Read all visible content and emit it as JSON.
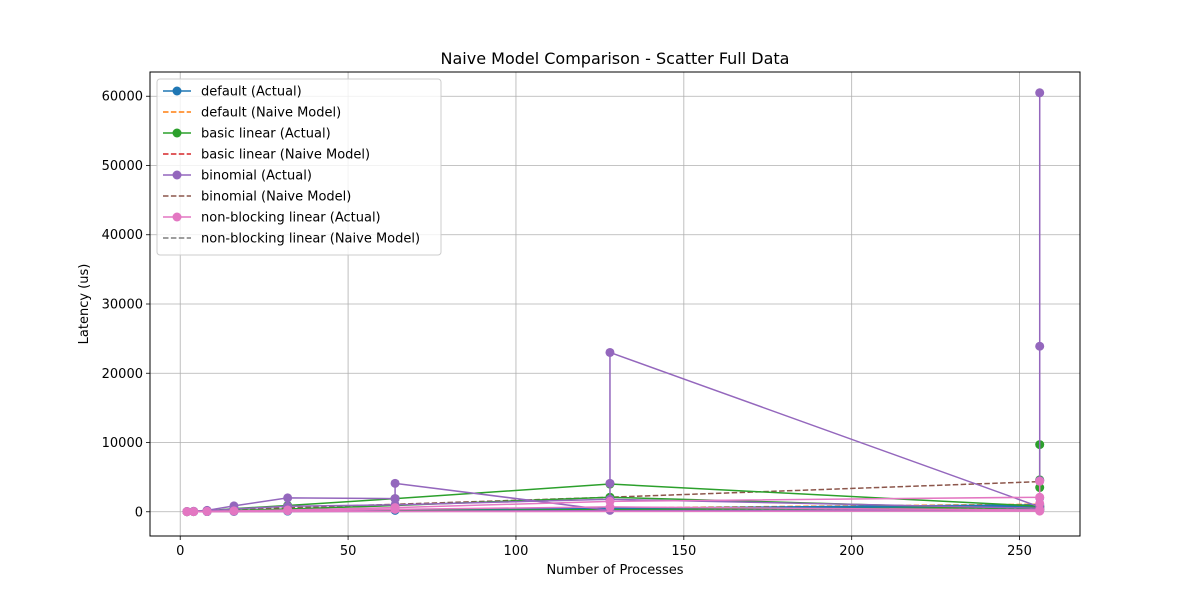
{
  "chart_data": {
    "type": "line",
    "title": "Naive Model Comparison - Scatter Full Data",
    "xlabel": "Number of Processes",
    "ylabel": "Latency (us)",
    "xlim": [
      -9,
      268
    ],
    "ylim": [
      -3500,
      63500
    ],
    "xticks": [
      0,
      50,
      100,
      150,
      200,
      250
    ],
    "yticks": [
      0,
      10000,
      20000,
      30000,
      40000,
      50000,
      60000
    ],
    "grid": true,
    "legend_position": "upper-left",
    "series": [
      {
        "name": "default (Actual)",
        "color": "#1f77b4",
        "style": "solid-marker",
        "points": [
          [
            2,
            20
          ],
          [
            4,
            25
          ],
          [
            8,
            35
          ],
          [
            16,
            60
          ],
          [
            32,
            120
          ],
          [
            64,
            250
          ],
          [
            128,
            500
          ],
          [
            256,
            1000
          ],
          [
            256,
            200
          ],
          [
            2,
            15
          ],
          [
            4,
            20
          ],
          [
            8,
            30
          ],
          [
            16,
            50
          ],
          [
            32,
            100
          ],
          [
            64,
            200
          ],
          [
            128,
            400
          ],
          [
            256,
            800
          ]
        ]
      },
      {
        "name": "default (Naive Model)",
        "color": "#ff7f0e",
        "style": "dashed",
        "points": [
          [
            2,
            10
          ],
          [
            4,
            20
          ],
          [
            8,
            35
          ],
          [
            16,
            70
          ],
          [
            32,
            140
          ],
          [
            64,
            270
          ],
          [
            128,
            540
          ],
          [
            256,
            1080
          ]
        ]
      },
      {
        "name": "basic linear (Actual)",
        "color": "#2ca02c",
        "style": "solid-marker",
        "points": [
          [
            2,
            20
          ],
          [
            4,
            40
          ],
          [
            8,
            120
          ],
          [
            16,
            450
          ],
          [
            32,
            900
          ],
          [
            64,
            1900
          ],
          [
            128,
            4000
          ],
          [
            256,
            800
          ],
          [
            256,
            3500
          ],
          [
            256,
            4600
          ],
          [
            256,
            9700
          ],
          [
            256,
            600
          ],
          [
            2,
            10
          ],
          [
            4,
            30
          ],
          [
            8,
            80
          ],
          [
            16,
            200
          ],
          [
            32,
            400
          ],
          [
            64,
            900
          ],
          [
            128,
            2100
          ],
          [
            256,
            300
          ]
        ]
      },
      {
        "name": "basic linear (Naive Model)",
        "color": "#d62728",
        "style": "dashed",
        "points": [
          [
            2,
            8
          ],
          [
            4,
            15
          ],
          [
            8,
            30
          ],
          [
            16,
            60
          ],
          [
            32,
            120
          ],
          [
            64,
            240
          ],
          [
            128,
            480
          ],
          [
            256,
            960
          ]
        ]
      },
      {
        "name": "binomial (Actual)",
        "color": "#9467bd",
        "style": "solid-marker",
        "points": [
          [
            2,
            30
          ],
          [
            4,
            70
          ],
          [
            8,
            200
          ],
          [
            16,
            850
          ],
          [
            32,
            2000
          ],
          [
            64,
            1900
          ],
          [
            64,
            4100
          ],
          [
            128,
            200
          ],
          [
            128,
            4100
          ],
          [
            128,
            23000
          ],
          [
            256,
            700
          ],
          [
            256,
            2000
          ],
          [
            256,
            23900
          ],
          [
            256,
            60500
          ],
          [
            256,
            4500
          ],
          [
            256,
            300
          ],
          [
            2,
            20
          ],
          [
            4,
            40
          ],
          [
            8,
            100
          ],
          [
            16,
            400
          ],
          [
            32,
            800
          ],
          [
            64,
            1000
          ],
          [
            128,
            1800
          ],
          [
            256,
            500
          ]
        ]
      },
      {
        "name": "binomial (Naive Model)",
        "color": "#8c564b",
        "style": "dashed",
        "points": [
          [
            2,
            40
          ],
          [
            4,
            80
          ],
          [
            8,
            150
          ],
          [
            16,
            280
          ],
          [
            32,
            560
          ],
          [
            64,
            1080
          ],
          [
            128,
            2100
          ],
          [
            256,
            4350
          ]
        ]
      },
      {
        "name": "non-blocking linear (Actual)",
        "color": "#e377c2",
        "style": "solid-marker",
        "points": [
          [
            2,
            15
          ],
          [
            4,
            25
          ],
          [
            8,
            60
          ],
          [
            16,
            120
          ],
          [
            32,
            250
          ],
          [
            64,
            600
          ],
          [
            128,
            1500
          ],
          [
            256,
            2100
          ],
          [
            256,
            4400
          ],
          [
            256,
            1200
          ],
          [
            256,
            100
          ],
          [
            2,
            10
          ],
          [
            4,
            20
          ],
          [
            8,
            40
          ],
          [
            16,
            80
          ],
          [
            32,
            150
          ],
          [
            64,
            350
          ],
          [
            128,
            700
          ],
          [
            256,
            250
          ]
        ]
      },
      {
        "name": "non-blocking linear (Naive Model)",
        "color": "#7f7f7f",
        "style": "dashed",
        "points": [
          [
            2,
            5
          ],
          [
            4,
            8
          ],
          [
            8,
            15
          ],
          [
            16,
            30
          ],
          [
            32,
            60
          ],
          [
            64,
            120
          ],
          [
            128,
            240
          ],
          [
            256,
            480
          ]
        ]
      }
    ]
  }
}
